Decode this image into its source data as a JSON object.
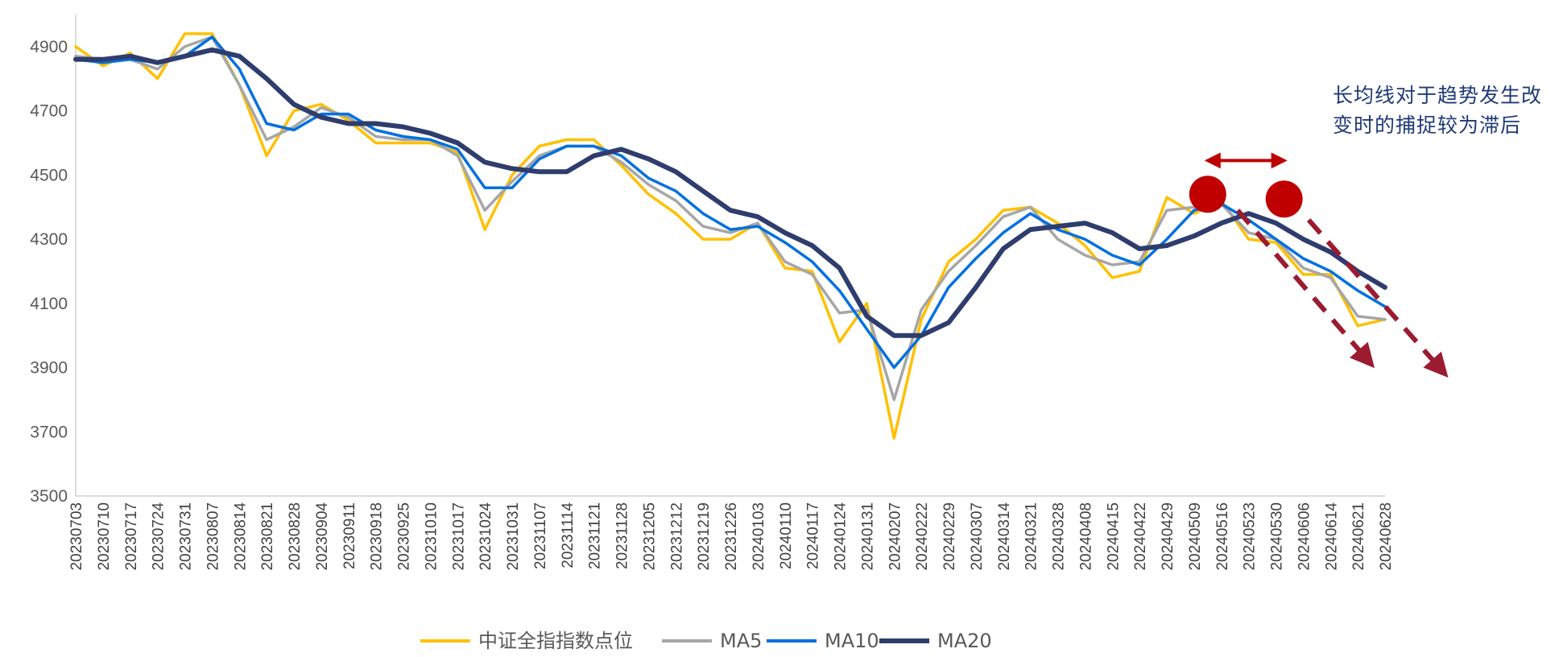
{
  "chart_data": {
    "type": "line",
    "title": "",
    "xlabel": "",
    "ylabel": "",
    "ylim": [
      3500,
      5000
    ],
    "y_ticks": [
      3500,
      3700,
      3900,
      4100,
      4300,
      4500,
      4700,
      4900
    ],
    "x_tick_labels": [
      "20230703",
      "20230710",
      "20230717",
      "20230724",
      "20230731",
      "20230807",
      "20230814",
      "20230821",
      "20230828",
      "20230904",
      "20230911",
      "20230918",
      "20230925",
      "20231010",
      "20231017",
      "20231024",
      "20231031",
      "20231107",
      "20231114",
      "20231121",
      "20231128",
      "20231205",
      "20231212",
      "20231219",
      "20231226",
      "20240103",
      "20240110",
      "20240117",
      "20240124",
      "20240131",
      "20240207",
      "20240222",
      "20240229",
      "20240307",
      "20240314",
      "20240321",
      "20240328",
      "20240408",
      "20240415",
      "20240422",
      "20240429",
      "20240509",
      "20240516",
      "20240523",
      "20240530",
      "20240606",
      "20240614",
      "20240621",
      "20240628"
    ],
    "series": [
      {
        "name": "中证全指指数点位",
        "color": "#FFC000",
        "values": [
          4900,
          4840,
          4880,
          4800,
          4940,
          4940,
          4780,
          4560,
          4700,
          4720,
          4670,
          4600,
          4600,
          4600,
          4570,
          4330,
          4500,
          4590,
          4610,
          4610,
          4530,
          4440,
          4380,
          4300,
          4300,
          4350,
          4210,
          4200,
          3980,
          4100,
          3680,
          4050,
          4230,
          4300,
          4390,
          4400,
          4350,
          4280,
          4180,
          4200,
          4430,
          4380,
          4420,
          4300,
          4290,
          4190,
          4190,
          4030,
          4050
        ]
      },
      {
        "name": "MA5",
        "color": "#A6A6A6",
        "values": [
          4870,
          4860,
          4860,
          4830,
          4900,
          4930,
          4780,
          4610,
          4650,
          4710,
          4680,
          4620,
          4610,
          4610,
          4560,
          4390,
          4480,
          4560,
          4590,
          4590,
          4540,
          4470,
          4420,
          4340,
          4320,
          4350,
          4230,
          4190,
          4070,
          4080,
          3800,
          4080,
          4200,
          4280,
          4370,
          4400,
          4300,
          4250,
          4220,
          4230,
          4390,
          4400,
          4410,
          4320,
          4300,
          4210,
          4180,
          4060,
          4050
        ]
      },
      {
        "name": "MA10",
        "color": "#0070E0",
        "values": [
          4860,
          4850,
          4860,
          4850,
          4870,
          4930,
          4830,
          4660,
          4640,
          4690,
          4690,
          4640,
          4620,
          4610,
          4580,
          4460,
          4460,
          4550,
          4590,
          4590,
          4560,
          4490,
          4450,
          4380,
          4330,
          4340,
          4290,
          4230,
          4140,
          4020,
          3900,
          4000,
          4150,
          4240,
          4320,
          4380,
          4330,
          4300,
          4250,
          4220,
          4300,
          4390,
          4410,
          4360,
          4300,
          4240,
          4200,
          4140,
          4090
        ]
      },
      {
        "name": "MA20",
        "color": "#2E3D6E",
        "values": [
          4860,
          4860,
          4870,
          4850,
          4870,
          4890,
          4870,
          4800,
          4720,
          4680,
          4660,
          4660,
          4650,
          4630,
          4600,
          4540,
          4520,
          4510,
          4510,
          4560,
          4580,
          4550,
          4510,
          4450,
          4390,
          4370,
          4320,
          4280,
          4210,
          4060,
          4000,
          4000,
          4040,
          4150,
          4270,
          4330,
          4340,
          4350,
          4320,
          4270,
          4280,
          4310,
          4350,
          4380,
          4350,
          4300,
          4260,
          4200,
          4150
        ]
      }
    ],
    "legend": "bottom",
    "grid": false,
    "annotation": "长均线对于趋势发生改变时的捕捉较为滞后",
    "markers": {
      "circles": [
        {
          "x_index": 41.5,
          "y": 4440
        },
        {
          "x_index": 44.3,
          "y": 4425
        }
      ],
      "arrow_double": {
        "from_index": 41.5,
        "to_index": 44.3,
        "y": 4545
      },
      "dashed_arrows": [
        {
          "from_index": 42.6,
          "from_y": 4390,
          "to_index": 47.5,
          "to_y": 3910
        },
        {
          "from_index": 45.2,
          "from_y": 4360,
          "to_index": 50.2,
          "to_y": 3880
        }
      ],
      "marker_color": "#C00000",
      "arrow_color": "#9B1B30"
    }
  }
}
